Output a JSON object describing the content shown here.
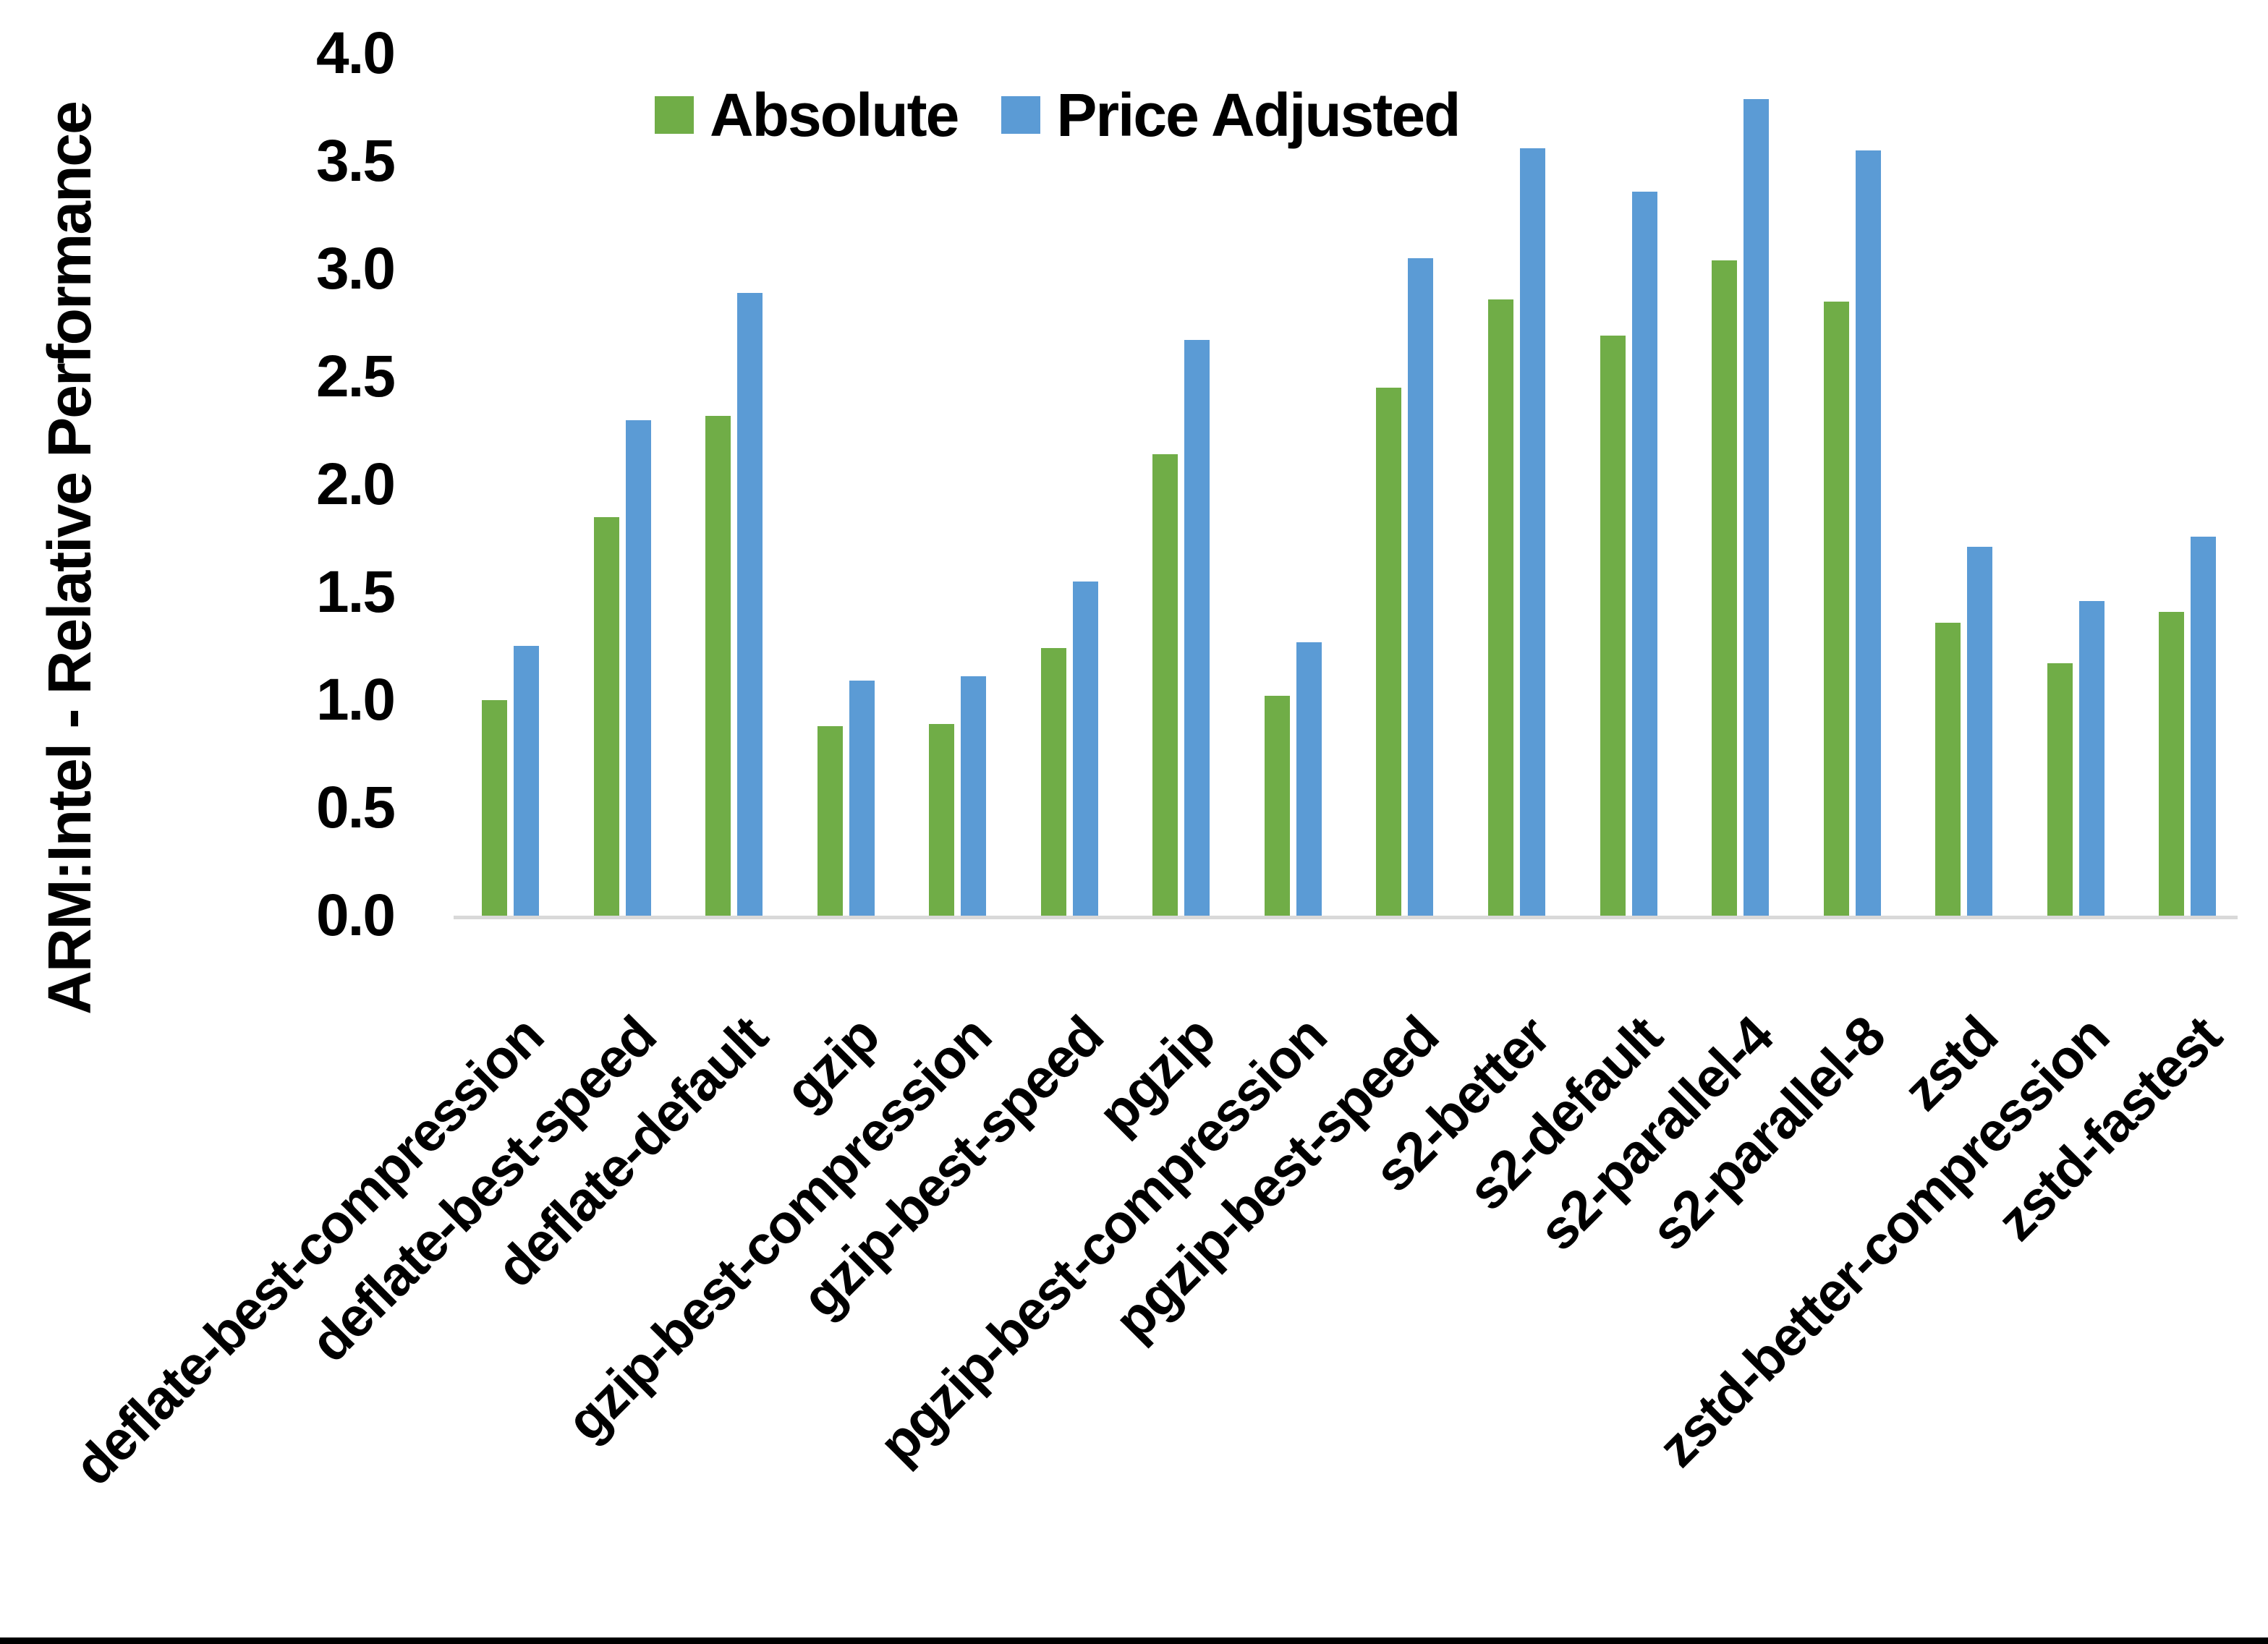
{
  "chart_data": {
    "type": "bar",
    "title": "",
    "ylabel": "ARM:Intel - Relative Performance",
    "xlabel": "",
    "ylim": [
      0.0,
      4.0
    ],
    "ytick_step": 0.5,
    "ytick_labels": [
      "0.0",
      "0.5",
      "1.0",
      "1.5",
      "2.0",
      "2.5",
      "3.0",
      "3.5",
      "4.0"
    ],
    "grid": false,
    "legend_position": "top-center",
    "categories": [
      "deflate-best-compression",
      "deflate-best-speed",
      "deflate-default",
      "gzip",
      "gzip-best-compression",
      "gzip-best-speed",
      "pgzip",
      "pgzip-best-compression",
      "pgzip-best-speed",
      "s2-better",
      "s2-default",
      "s2-parallel-4",
      "s2-parallel-8",
      "zstd",
      "zstd-better-compression",
      "zstd-fastest"
    ],
    "series": [
      {
        "name": "Absolute",
        "color": "#70AD47",
        "values": [
          1.0,
          1.85,
          2.32,
          0.88,
          0.89,
          1.24,
          2.14,
          1.02,
          2.45,
          2.86,
          2.69,
          3.04,
          2.85,
          1.36,
          1.17,
          1.41
        ]
      },
      {
        "name": "Price Adjusted",
        "color": "#5B9BD5",
        "values": [
          1.25,
          2.3,
          2.89,
          1.09,
          1.11,
          1.55,
          2.67,
          1.27,
          3.05,
          3.56,
          3.36,
          3.79,
          3.55,
          1.71,
          1.46,
          1.76
        ]
      }
    ]
  },
  "colors": {
    "background": "#FFFFFF",
    "axis_line": "#D9D9D9",
    "text": "#000000",
    "bottom_border": "#000000"
  }
}
